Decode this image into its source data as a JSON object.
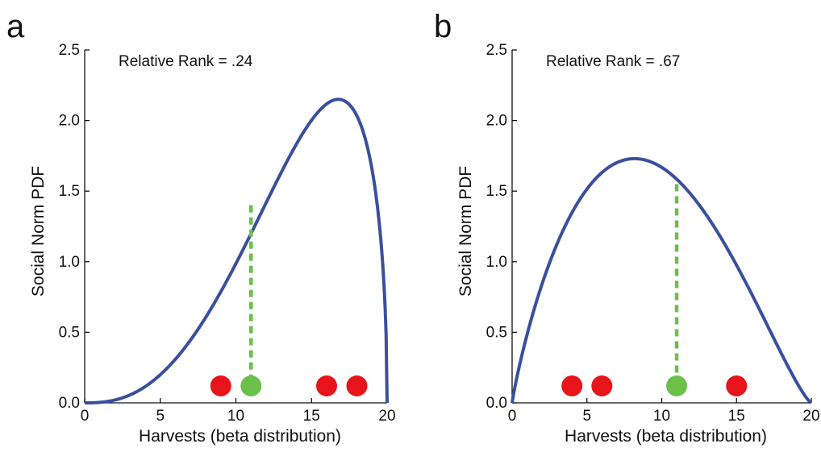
{
  "chart_data": [
    {
      "panel_label": "a",
      "type": "line",
      "annotation": "Relative Rank = .24",
      "xlabel": "Harvests (beta distribution)",
      "ylabel": "Social Norm PDF",
      "xlim": [
        0,
        20
      ],
      "ylim": [
        0,
        2.5
      ],
      "xticks": [
        "0",
        "5",
        "10",
        "15",
        "20"
      ],
      "yticks": [
        "0.0",
        "0.5",
        "1.0",
        "1.5",
        "2.0",
        "2.5"
      ],
      "curve": {
        "alpha": 3.6,
        "beta": 1.5,
        "peak_y": 2.15,
        "color": "#3a4f9c"
      },
      "own_harvest": {
        "x": 11,
        "pdf_height": 1.4,
        "color": "#6cc04a"
      },
      "others_harvests": {
        "x": [
          9,
          16,
          18
        ],
        "color": "#e8141b"
      },
      "marker_y": 0.12
    },
    {
      "panel_label": "b",
      "type": "line",
      "annotation": "Relative Rank = .67",
      "xlabel": "Harvests (beta distribution)",
      "ylabel": "Social Norm PDF",
      "xlim": [
        0,
        20
      ],
      "ylim": [
        0,
        2.5
      ],
      "xticks": [
        "0",
        "5",
        "10",
        "15",
        "20"
      ],
      "yticks": [
        "0.0",
        "0.5",
        "1.0",
        "1.5",
        "2.0",
        "2.5"
      ],
      "curve": {
        "alpha": 1.9,
        "beta": 2.3,
        "peak_y": 1.73,
        "color": "#3a4f9c"
      },
      "own_harvest": {
        "x": 11,
        "pdf_height": 1.55,
        "color": "#6cc04a"
      },
      "others_harvests": {
        "x": [
          4,
          6,
          15
        ],
        "color": "#e8141b"
      },
      "marker_y": 0.12
    }
  ]
}
